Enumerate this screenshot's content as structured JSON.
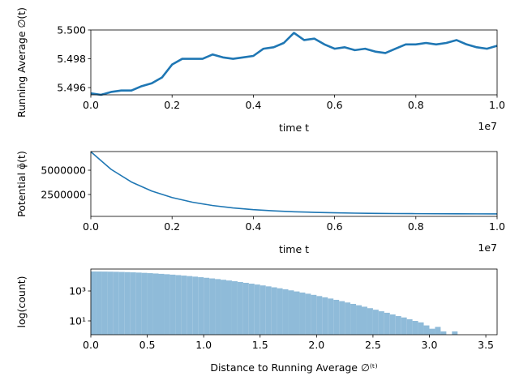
{
  "chart_data": [
    {
      "type": "line",
      "ylabel": "Running Average ∅(t)",
      "xlabel": "time t",
      "x_offset_label": "1e7",
      "x": [
        0,
        250000,
        500000,
        750000,
        1000000,
        1250000,
        1500000,
        1750000,
        2000000,
        2250000,
        2500000,
        2750000,
        3000000,
        3250000,
        3500000,
        3750000,
        4000000,
        4250000,
        4500000,
        4750000,
        5000000,
        5250000,
        5500000,
        5750000,
        6000000,
        6250000,
        6500000,
        6750000,
        7000000,
        7250000,
        7500000,
        7750000,
        8000000,
        8250000,
        8500000,
        8750000,
        9000000,
        9250000,
        9500000,
        9750000,
        10000000
      ],
      "series": [
        {
          "color": "#1f77b4",
          "values": [
            5.4956,
            5.4955,
            5.4957,
            5.4958,
            5.4958,
            5.4961,
            5.4963,
            5.4967,
            5.4976,
            5.498,
            5.498,
            5.498,
            5.4983,
            5.4981,
            5.498,
            5.4981,
            5.4982,
            5.4987,
            5.4988,
            5.4991,
            5.4998,
            5.4993,
            5.4994,
            5.499,
            5.4987,
            5.4988,
            5.4986,
            5.4987,
            5.4985,
            5.4984,
            5.4987,
            5.499,
            5.499,
            5.4991,
            5.499,
            5.4991,
            5.4993,
            5.499,
            5.4988,
            5.4987,
            5.4989
          ]
        }
      ],
      "xlim": [
        0,
        10000000
      ],
      "xticks": [
        {
          "value": 0,
          "label": "0.0"
        },
        {
          "value": 2000000,
          "label": "0.2"
        },
        {
          "value": 4000000,
          "label": "0.4"
        },
        {
          "value": 6000000,
          "label": "0.6"
        },
        {
          "value": 8000000,
          "label": "0.8"
        },
        {
          "value": 10000000,
          "label": "1.0"
        }
      ],
      "ylim": [
        5.4955,
        5.5
      ],
      "yticks": [
        5.496,
        5.498,
        {
          "value": 5.5,
          "label": "5.500"
        }
      ]
    },
    {
      "type": "line",
      "ylabel": "Potential φ̄(t)",
      "xlabel": "time t",
      "x_offset_label": "1e7",
      "x": [
        0,
        500000,
        1000000,
        1500000,
        2000000,
        2500000,
        3000000,
        3500000,
        4000000,
        4500000,
        5000000,
        5500000,
        6000000,
        6500000,
        7000000,
        7500000,
        8000000,
        8500000,
        9000000,
        9500000,
        10000000
      ],
      "series": [
        {
          "color": "#1f77b4",
          "values": [
            6900000,
            5086000,
            3786000,
            2854000,
            2187000,
            1709000,
            1366000,
            1121000,
            945000,
            819000,
            728000,
            664000,
            617000,
            584000,
            560000,
            543000,
            531000,
            522000,
            516000,
            511000,
            508000
          ]
        }
      ],
      "xlim": [
        0,
        10000000
      ],
      "xticks": [
        {
          "value": 0,
          "label": "0.0"
        },
        {
          "value": 2000000,
          "label": "0.2"
        },
        {
          "value": 4000000,
          "label": "0.4"
        },
        {
          "value": 6000000,
          "label": "0.6"
        },
        {
          "value": 8000000,
          "label": "0.8"
        },
        {
          "value": 10000000,
          "label": "1.0"
        }
      ],
      "ylim": [
        250000,
        6920000
      ],
      "yticks": [
        2500000,
        5000000
      ]
    },
    {
      "type": "histogram",
      "ylabel": "log(count)",
      "xlabel": "Distance to Running Average ∅⁽ᵗ⁾",
      "yscale": "log",
      "color": "#8fbbd9",
      "bins": [
        0,
        0.05,
        0.1,
        0.15,
        0.2,
        0.25,
        0.3,
        0.35,
        0.4,
        0.45,
        0.5,
        0.55,
        0.6,
        0.65,
        0.7,
        0.75,
        0.8,
        0.85,
        0.9,
        0.95,
        1,
        1.05,
        1.1,
        1.15,
        1.2,
        1.25,
        1.3,
        1.35,
        1.4,
        1.45,
        1.5,
        1.55,
        1.6,
        1.65,
        1.7,
        1.75,
        1.8,
        1.85,
        1.9,
        1.95,
        2,
        2.05,
        2.1,
        2.15,
        2.2,
        2.25,
        2.3,
        2.35,
        2.4,
        2.45,
        2.5,
        2.55,
        2.6,
        2.65,
        2.7,
        2.75,
        2.8,
        2.85,
        2.9,
        2.95,
        3,
        3.05,
        3.1,
        3.15,
        3.2,
        3.25,
        3.3,
        3.35,
        3.4,
        3.45,
        3.5,
        3.55
      ],
      "values": [
        19950,
        19850,
        19670,
        19400,
        19040,
        18610,
        18100,
        17520,
        16890,
        16200,
        15470,
        14700,
        13900,
        13100,
        12280,
        11460,
        10640,
        9840,
        9060,
        8300,
        7580,
        6880,
        6220,
        5590,
        5010,
        4460,
        3960,
        3500,
        3070,
        2690,
        2340,
        2030,
        1750,
        1510,
        1290,
        1100,
        928,
        783,
        657,
        549,
        457,
        378,
        312,
        256,
        209,
        170,
        137,
        111,
        89,
        71,
        56,
        44,
        35,
        27,
        21,
        17,
        13,
        10,
        8,
        5,
        3,
        4,
        2,
        1,
        2,
        1,
        0,
        1,
        0,
        1,
        0
      ],
      "xlim": [
        0,
        3.6
      ],
      "xticks": [
        {
          "value": 0,
          "label": "0.0"
        },
        0.5,
        {
          "value": 1,
          "label": "1.0"
        },
        1.5,
        {
          "value": 2,
          "label": "2.0"
        },
        2.5,
        {
          "value": 3,
          "label": "3.0"
        },
        3.5
      ],
      "ylim": [
        1.2,
        29000
      ],
      "yticks": [
        {
          "value": 10,
          "label": "10¹"
        },
        {
          "value": 1000,
          "label": "10³"
        }
      ]
    }
  ]
}
